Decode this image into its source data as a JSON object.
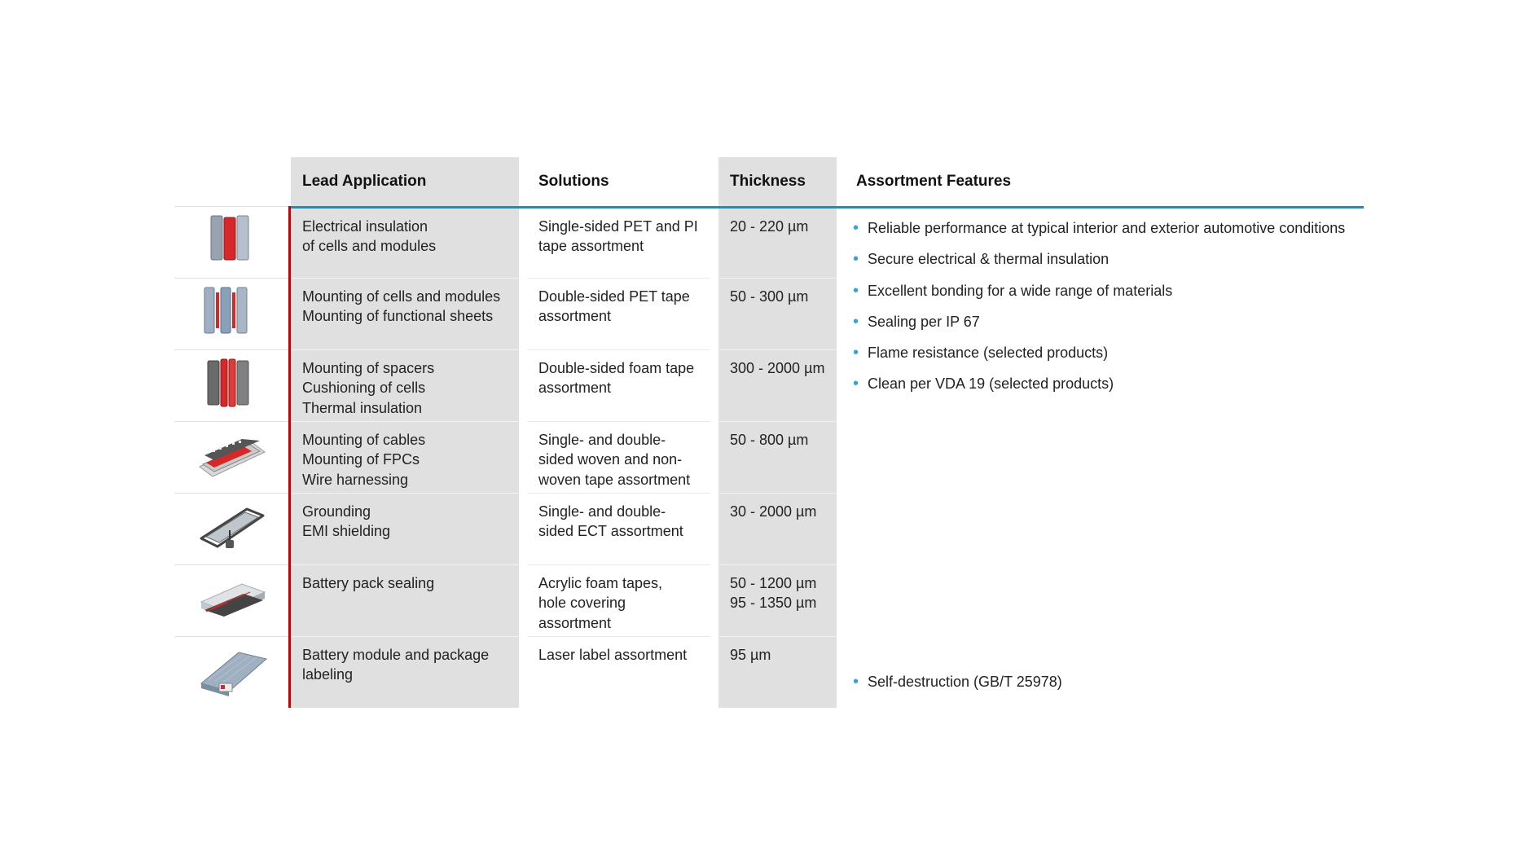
{
  "colors": {
    "accent_blue": "#0099cc",
    "accent_red": "#cc0000",
    "header_bg": "#e0e0e0",
    "row_border": "#e0e0e0",
    "bullet": "#39a3d6",
    "text": "#222222"
  },
  "headers": {
    "lead": "Lead Application",
    "solutions": "Solutions",
    "thickness": "Thickness",
    "features": "Assortment Features"
  },
  "rows": [
    {
      "icon": "cell-panels-icon",
      "lead": "Electrical insulation\nof cells and modules",
      "solution": "Single-sided PET and PI tape assortment",
      "thickness": "20 - 220 µm"
    },
    {
      "icon": "module-mount-icon",
      "lead": "Mounting of cells and modules\nMounting of functional sheets",
      "solution": "Double-sided PET tape assortment",
      "thickness": "50 - 300 µm"
    },
    {
      "icon": "spacer-foam-icon",
      "lead": "Mounting of spacers\nCushioning of cells\nThermal insulation",
      "solution": "Double-sided foam tape assortment",
      "thickness": "300 - 2000 µm"
    },
    {
      "icon": "cable-harness-icon",
      "lead": "Mounting of cables\nMounting of FPCs\nWire harnessing",
      "solution": "Single- and double-sided woven and non-woven tape assortment",
      "thickness": "50 - 800 µm"
    },
    {
      "icon": "shielding-icon",
      "lead": "Grounding\nEMI shielding",
      "solution": "Single- and double-sided ECT assortment",
      "thickness": "30 - 2000 µm"
    },
    {
      "icon": "pack-seal-icon",
      "lead": "Battery pack sealing",
      "solution": "Acrylic foam tapes,\nhole covering assortment",
      "thickness": "50 - 1200 µm\n95 - 1350 µm"
    },
    {
      "icon": "module-label-icon",
      "lead": "Battery module and package labeling",
      "solution": "Laser label assortment",
      "thickness": "95 µm"
    }
  ],
  "features_top": [
    "Reliable performance at typical interior and exterior automotive conditions",
    "Secure electrical & thermal insulation",
    "Excellent bonding for a wide range of materials",
    "Sealing per IP 67",
    "Flame resistance (selected products)",
    "Clean per VDA 19 (selected products)"
  ],
  "features_bottom": [
    "Self-destruction (GB/T 25978)"
  ]
}
